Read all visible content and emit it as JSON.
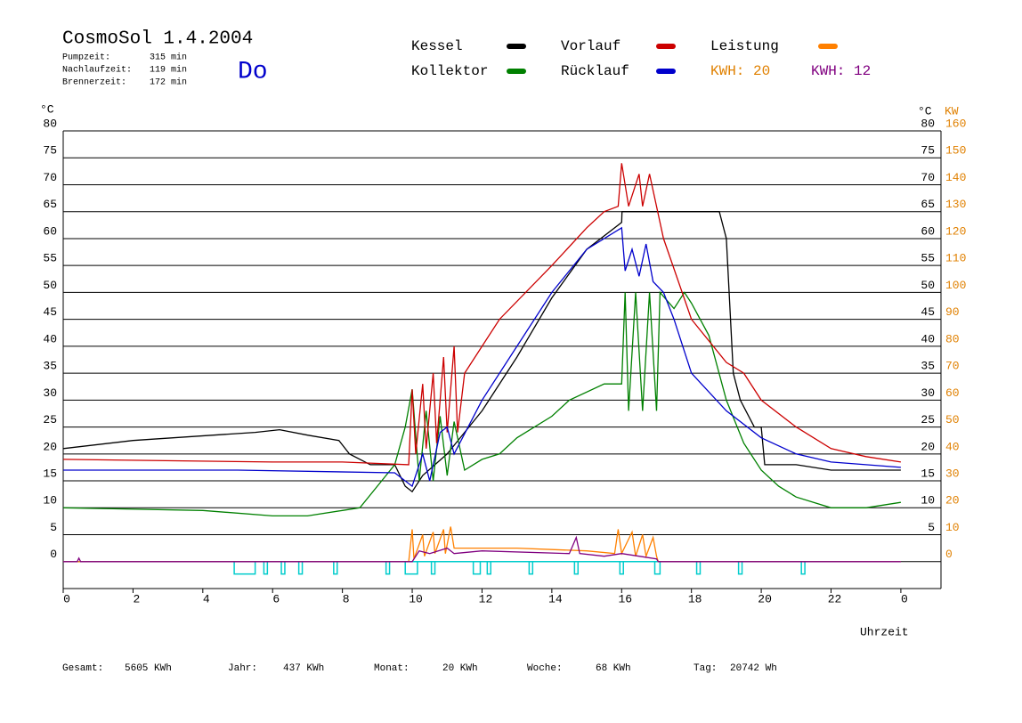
{
  "header": {
    "title": "CosmoSol 1.4.2004",
    "day": "Do",
    "rows": [
      {
        "label": "Pumpzeit:",
        "value": "315 min"
      },
      {
        "label": "Nachlaufzeit:",
        "value": "119 min"
      },
      {
        "label": "Brennerzeit:",
        "value": "172 min"
      }
    ]
  },
  "footer": [
    {
      "label": "Gesamt:",
      "value": "5605 KWh"
    },
    {
      "label": "Jahr:",
      "value": "437 KWh"
    },
    {
      "label": "Monat:",
      "value": "20 KWh"
    },
    {
      "label": "Woche:",
      "value": "68 KWh"
    },
    {
      "label": "Tag:",
      "value": "20742 Wh"
    }
  ],
  "chart_data": {
    "type": "line",
    "y_label": "°C",
    "y2_label_a": "°C",
    "y2_label_b": "KW",
    "x_label": "Uhrzeit",
    "xlim": [
      0,
      25.15
    ],
    "ylim": [
      -5,
      80
    ],
    "y2lim": [
      -10,
      160
    ],
    "xticks": [
      0,
      2,
      4,
      6,
      8,
      10,
      12,
      14,
      16,
      18,
      20,
      22,
      {
        "value": 24,
        "label": "0"
      }
    ],
    "yticks": [
      0,
      5,
      10,
      15,
      20,
      25,
      30,
      35,
      40,
      45,
      50,
      55,
      60,
      65,
      70,
      75,
      80
    ],
    "yticks_right": [
      5,
      10,
      15,
      20,
      25,
      30,
      35,
      40,
      45,
      50,
      55,
      60,
      65,
      70,
      75,
      80
    ],
    "y2ticks": [
      0,
      10,
      20,
      30,
      40,
      50,
      60,
      70,
      80,
      90,
      100,
      110,
      120,
      130,
      140,
      150,
      160
    ],
    "y2_color": "#e08000",
    "grid": true,
    "series": [
      {
        "name": "Kessel",
        "color": "#000000",
        "x": [
          0,
          2,
          5.5,
          6.2,
          7,
          7.9,
          8.2,
          8.8,
          9.5,
          9.8,
          10,
          10.3,
          11,
          12,
          13,
          14,
          15,
          16,
          16.01,
          18.5,
          18.8,
          19,
          19.2,
          19.4,
          19.8,
          20,
          20.1,
          21,
          22,
          24
        ],
        "values": [
          21,
          22.5,
          24,
          24.5,
          23.5,
          22.5,
          20,
          18,
          18,
          14,
          13,
          16,
          20,
          28,
          38,
          49,
          58,
          63,
          65,
          65,
          65,
          60,
          35,
          30,
          25,
          25,
          18,
          18,
          17,
          17
        ]
      },
      {
        "name": "Kollektor",
        "color": "#008000",
        "x": [
          0,
          4,
          6,
          7,
          8,
          8.5,
          9,
          9.5,
          9.8,
          10,
          10.2,
          10.4,
          10.6,
          10.8,
          11,
          11.2,
          11.5,
          12,
          12.5,
          13,
          14,
          14.5,
          15.5,
          16,
          16.1,
          16.2,
          16.4,
          16.6,
          16.8,
          17,
          17.1,
          17.5,
          17.8,
          18,
          18.5,
          19,
          19.5,
          20,
          20.5,
          21,
          22,
          23,
          24
        ],
        "values": [
          10,
          9.5,
          8.5,
          8.5,
          9.5,
          10,
          14,
          18,
          25,
          32,
          15,
          28,
          15,
          27,
          16,
          26,
          17,
          19,
          20,
          23,
          27,
          30,
          33,
          33,
          50,
          28,
          50,
          28,
          50,
          28,
          50,
          47,
          50,
          48,
          42,
          30,
          22,
          17,
          14,
          12,
          10,
          10,
          11
        ]
      },
      {
        "name": "Vorlauf",
        "color": "#cc0000",
        "x": [
          0,
          6,
          8,
          9.9,
          10,
          10.1,
          10.3,
          10.4,
          10.6,
          10.7,
          10.9,
          11,
          11.2,
          11.3,
          11.5,
          12.5,
          14,
          15,
          15.5,
          15.9,
          16,
          16.2,
          16.5,
          16.6,
          16.8,
          17.2,
          18,
          19,
          19.5,
          20,
          21,
          22,
          23,
          24
        ],
        "values": [
          19,
          18.5,
          18.5,
          18,
          32,
          20,
          33,
          21,
          35,
          22,
          38,
          24,
          40,
          24,
          35,
          45,
          55,
          62,
          65,
          66,
          74,
          66,
          72,
          66,
          72,
          60,
          45,
          37,
          35,
          30,
          25,
          21,
          19.5,
          18.5
        ]
      },
      {
        "name": "Rücklauf",
        "color": "#0000cc",
        "x": [
          0,
          5,
          9.5,
          10,
          10.3,
          10.5,
          10.8,
          11,
          11.2,
          12,
          13,
          14,
          15,
          16,
          16.1,
          16.3,
          16.5,
          16.7,
          16.9,
          17.2,
          17.5,
          18,
          19,
          20,
          21,
          22,
          24
        ],
        "values": [
          17,
          17,
          16.5,
          14,
          20,
          15,
          24,
          25,
          20,
          30,
          40,
          50,
          58,
          62,
          54,
          58,
          53,
          59,
          52,
          50,
          45,
          35,
          28,
          23,
          20,
          18.5,
          17.5
        ]
      },
      {
        "name": "Leistung",
        "color": "#ff8000",
        "axis": "y2",
        "x": [
          0,
          9.9,
          10,
          10.05,
          10.3,
          10.35,
          10.6,
          10.65,
          10.9,
          10.95,
          11.1,
          11.2,
          11.3,
          12,
          13,
          14,
          15,
          15.8,
          15.9,
          16,
          16.3,
          16.4,
          16.6,
          16.7,
          16.9,
          17,
          17.05,
          24
        ],
        "values": [
          0,
          0,
          12,
          1,
          10,
          2,
          11,
          3,
          12,
          3,
          13,
          5,
          5,
          5,
          5,
          4.5,
          4,
          3,
          12,
          3,
          11,
          2,
          10,
          2,
          9,
          2,
          0,
          0
        ]
      },
      {
        "color": "#800080",
        "axis": "y2",
        "x": [
          0,
          0.4,
          0.45,
          0.5,
          10,
          10.2,
          10.5,
          11,
          11.2,
          12,
          14.5,
          14.7,
          14.8,
          15.5,
          16,
          16.5,
          17,
          17.05,
          24
        ],
        "values": [
          0,
          0,
          1.3,
          0,
          0,
          4,
          3,
          5,
          3,
          4,
          3,
          9,
          3,
          2,
          3,
          2,
          1,
          0,
          0
        ]
      }
    ],
    "kwh_labels": [
      {
        "text": "KWH: 20",
        "color": "#e08000"
      },
      {
        "text": "KWH: 12",
        "color": "#800080"
      }
    ],
    "pump": {
      "color": "#00cccc",
      "depth": -2.3,
      "intervals": [
        [
          4.9,
          5.5
        ],
        [
          5.75,
          5.85
        ],
        [
          6.25,
          6.35
        ],
        [
          6.75,
          6.85
        ],
        [
          7.75,
          7.85
        ],
        [
          9.25,
          9.35
        ],
        [
          9.8,
          10.15
        ],
        [
          10.55,
          10.65
        ],
        [
          11.75,
          11.95
        ],
        [
          12.15,
          12.25
        ],
        [
          13.35,
          13.45
        ],
        [
          14.65,
          14.75
        ],
        [
          15.95,
          16.05
        ],
        [
          16.95,
          17.1
        ],
        [
          18.15,
          18.25
        ],
        [
          19.35,
          19.45
        ],
        [
          21.15,
          21.25
        ]
      ]
    }
  }
}
